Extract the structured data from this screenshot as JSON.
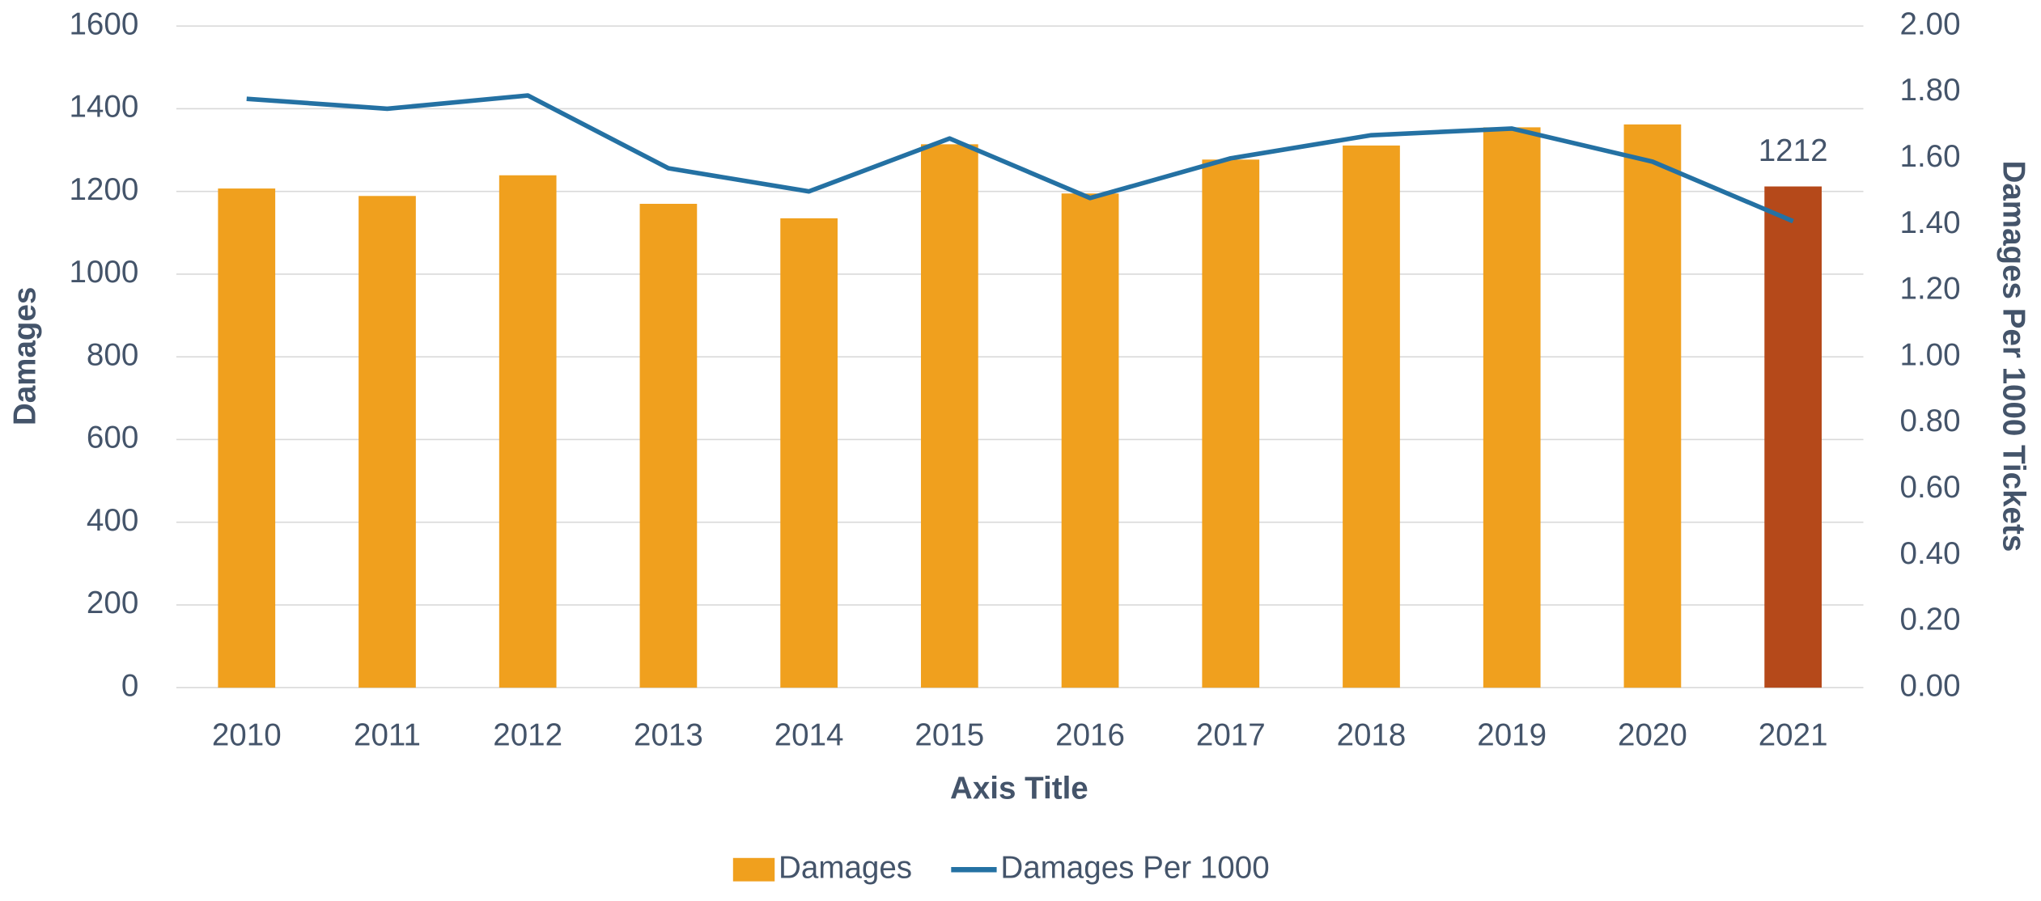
{
  "chart_data": {
    "type": "bar_line",
    "x_axis_title": "Axis Title",
    "y_axis_title": "Damages",
    "y2_axis_title": "Damages Per 1000 Tickets",
    "categories": [
      "2010",
      "2011",
      "2012",
      "2013",
      "2014",
      "2015",
      "2016",
      "2017",
      "2018",
      "2019",
      "2020",
      "2021"
    ],
    "series": [
      {
        "name": "Damages",
        "type": "bar",
        "color": "#f0a01e",
        "colors": [
          "#f0a01e",
          "#f0a01e",
          "#f0a01e",
          "#f0a01e",
          "#f0a01e",
          "#f0a01e",
          "#f0a01e",
          "#f0a01e",
          "#f0a01e",
          "#f0a01e",
          "#f0a01e",
          "#b5491a"
        ],
        "values": [
          1207,
          1189,
          1239,
          1170,
          1135,
          1314,
          1195,
          1277,
          1311,
          1355,
          1362,
          1212
        ],
        "value_labels": [
          null,
          null,
          null,
          null,
          null,
          null,
          null,
          null,
          null,
          null,
          null,
          "1212"
        ]
      },
      {
        "name": "Damages Per 1000",
        "type": "line",
        "axis": "y2",
        "color": "#2471a3",
        "values": [
          1.78,
          1.75,
          1.79,
          1.57,
          1.5,
          1.66,
          1.48,
          1.6,
          1.67,
          1.69,
          1.59,
          1.41
        ]
      }
    ],
    "ylim": [
      0,
      1600
    ],
    "yticks": [
      0,
      200,
      400,
      600,
      800,
      1000,
      1200,
      1400,
      1600
    ],
    "y2lim": [
      0,
      2
    ],
    "y2ticks": [
      {
        "value": 0,
        "label": "0.00"
      },
      {
        "value": 0.2,
        "label": "0.20"
      },
      {
        "value": 0.4,
        "label": "0.40"
      },
      {
        "value": 0.6,
        "label": "0.60"
      },
      {
        "value": 0.8,
        "label": "0.80"
      },
      {
        "value": 1,
        "label": "1.00"
      },
      {
        "value": 1.2,
        "label": "1.20"
      },
      {
        "value": 1.4,
        "label": "1.40"
      },
      {
        "value": 1.6,
        "label": "1.60"
      },
      {
        "value": 1.8,
        "label": "1.80"
      },
      {
        "value": 2,
        "label": "2.00"
      }
    ],
    "grid": true,
    "legend": "bottom"
  }
}
